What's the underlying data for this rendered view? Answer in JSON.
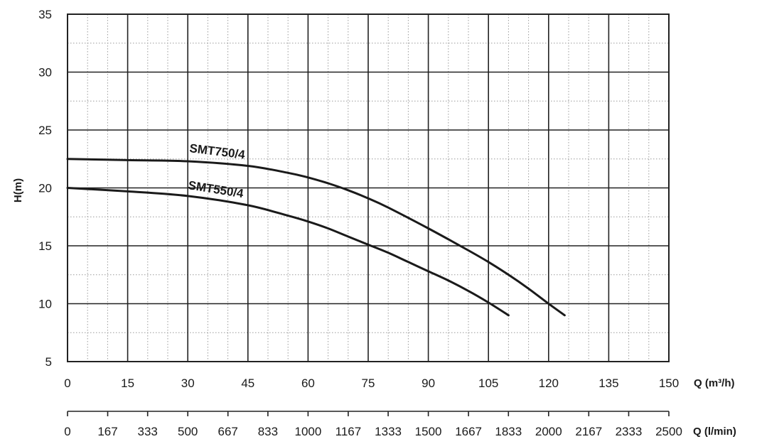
{
  "chart_data": {
    "type": "line",
    "ylabel": "H(m)",
    "xlabel": "Q (m³/h)",
    "xlabel_secondary": "Q (l/min)",
    "xlim": [
      0,
      150
    ],
    "ylim": [
      5,
      35
    ],
    "x_ticks": [
      "0",
      "15",
      "30",
      "45",
      "60",
      "75",
      "90",
      "105",
      "120",
      "135",
      "150"
    ],
    "y_ticks": [
      "5",
      "10",
      "15",
      "20",
      "25",
      "30",
      "35"
    ],
    "secondary_ticks": [
      "0",
      "167",
      "333",
      "500",
      "667",
      "833",
      "1000",
      "1167",
      "1333",
      "1500",
      "1667",
      "1833",
      "2000",
      "2167",
      "2333",
      "2500"
    ],
    "grid": true,
    "series": [
      {
        "name": "SMT750/4",
        "x": [
          0,
          15,
          30,
          45,
          55,
          60,
          65,
          70,
          75,
          80,
          90,
          100,
          105,
          110,
          115,
          120,
          124
        ],
        "y": [
          22.5,
          22.4,
          22.3,
          21.9,
          21.3,
          20.9,
          20.4,
          19.8,
          19.1,
          18.3,
          16.5,
          14.6,
          13.6,
          12.5,
          11.3,
          10.0,
          9.0
        ]
      },
      {
        "name": "SMT550/4",
        "x": [
          0,
          15,
          30,
          45,
          55,
          60,
          65,
          70,
          75,
          80,
          85,
          90,
          95,
          100,
          105,
          110
        ],
        "y": [
          20.0,
          19.7,
          19.3,
          18.5,
          17.6,
          17.1,
          16.5,
          15.8,
          15.1,
          14.4,
          13.6,
          12.8,
          12.0,
          11.1,
          10.1,
          9.0
        ]
      }
    ]
  }
}
